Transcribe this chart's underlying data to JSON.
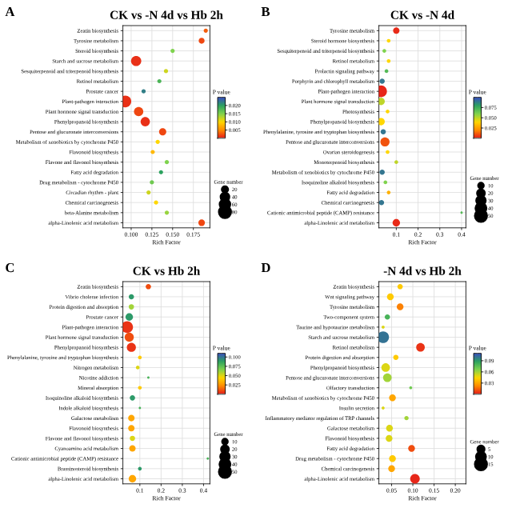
{
  "chart_data": [
    {
      "type": "bubble",
      "orientation": "horizontal",
      "title": "CK vs -N 4d vs Hb 2h",
      "xlabel": "Rich Factor",
      "clabel": "P value",
      "legend_title": "Gene number",
      "annotations": [
        "A"
      ],
      "categories": [
        "Zeatin biosynthesis",
        "Tyrosine metabolism",
        "Steroid biosynthesis",
        "Starch and sucrose metabolism",
        "Sesquiterpenoid and triterpenoid biosynthesis",
        "Retinol metabolism",
        "Prostate cancer",
        "Plant-pathogen interaction",
        "Plant hormone signal transduction",
        "Phenylpropanoid biosynthesis",
        "Pentose and glucuronate interconversions",
        "Metabolism of xenobiotics by cytochrome P450",
        "Flavonoid biosynthesis",
        "Flavone and flavonol biosynthesis",
        "Fatty acid degradation",
        "Drug metabolism - cytochrome P450",
        "Circadian rhythm - plant",
        "Chemical carcinogenesis",
        "beta-Alanine metabolism",
        "alpha-Linolenic acid metabolism"
      ],
      "values": [
        0.19,
        0.185,
        0.15,
        0.106,
        0.142,
        0.134,
        0.115,
        0.093,
        0.109,
        0.117,
        0.138,
        0.132,
        0.126,
        0.143,
        0.136,
        0.125,
        0.121,
        0.13,
        0.143,
        0.185
      ],
      "sizes": [
        10,
        20,
        10,
        60,
        10,
        10,
        10,
        80,
        50,
        50,
        30,
        10,
        10,
        10,
        10,
        10,
        10,
        10,
        10,
        25
      ],
      "cvalues": [
        0.003,
        0.002,
        0.015,
        0.001,
        0.012,
        0.018,
        0.022,
        0.001,
        0.002,
        0.001,
        0.002,
        0.01,
        0.008,
        0.015,
        0.02,
        0.016,
        0.012,
        0.01,
        0.014,
        0.002
      ],
      "xlim": [
        0.09,
        0.195
      ],
      "xticks": [
        {
          "value": 0.1,
          "label": "0.100"
        },
        {
          "value": 0.125,
          "label": "0.125"
        },
        {
          "value": 0.15,
          "label": "0.150"
        },
        {
          "value": 0.175,
          "label": "0.175"
        }
      ],
      "clim": [
        0,
        0.025
      ],
      "cticks": [
        {
          "value": 0.005,
          "label": "0.005"
        },
        {
          "value": 0.01,
          "label": "0.010"
        },
        {
          "value": 0.015,
          "label": "0.015"
        },
        {
          "value": 0.02,
          "label": "0.020"
        }
      ],
      "size_legend": [
        20,
        40,
        60,
        80
      ],
      "grid": true
    },
    {
      "type": "bubble",
      "orientation": "horizontal",
      "title": "CK vs -N 4d",
      "xlabel": "Rich Factor",
      "clabel": "P value",
      "legend_title": "Gene number",
      "annotations": [
        "B"
      ],
      "categories": [
        "Tyrosine metabolism",
        "Steroid hormone biosynthesis",
        "Sesquiterpenoid and triterpenoid biosynthesis",
        "Retinol metabolism",
        "Prolactin signaling pathway",
        "Porphyrin and chlorophyll metabolism",
        "Plant-pathogen interaction",
        "Plant hormone signal transduction",
        "Photosynthesis",
        "Phenylpropanoid biosynthesis",
        "Phenylalanine, tyrosine and tryptophan biosynthesis",
        "Pentose and glucuronate interconversions",
        "Ovarian steroidogenesis",
        "Monoterpenoid biosynthesis",
        "Metabolism of xenobiotics by cytochrome P450",
        "Isoquinoline alkaloid biosynthesis",
        "Fatty acid degradation",
        "Chemical carcinogenesis",
        "Cationic antimicrobial peptide (CAMP) resistance",
        "alpha-Linolenic acid metabolism"
      ],
      "values": [
        0.1,
        0.065,
        0.045,
        0.065,
        0.055,
        0.035,
        0.03,
        0.03,
        0.06,
        0.03,
        0.04,
        0.048,
        0.06,
        0.1,
        0.035,
        0.05,
        0.065,
        0.032,
        0.4,
        0.1
      ],
      "sizes": [
        15,
        5,
        5,
        5,
        5,
        10,
        50,
        20,
        5,
        20,
        10,
        30,
        5,
        5,
        10,
        5,
        5,
        10,
        2,
        20
      ],
      "cvalues": [
        0.003,
        0.04,
        0.06,
        0.04,
        0.07,
        0.09,
        0.002,
        0.05,
        0.04,
        0.04,
        0.09,
        0.01,
        0.04,
        0.05,
        0.09,
        0.06,
        0.03,
        0.09,
        0.07,
        0.003
      ],
      "xlim": [
        0.02,
        0.42
      ],
      "xticks": [
        0.1,
        0.2,
        0.3,
        0.4
      ],
      "clim": [
        0,
        0.1
      ],
      "cticks": [
        {
          "value": 0.025,
          "label": "0.025"
        },
        {
          "value": 0.05,
          "label": "0.050"
        },
        {
          "value": 0.075,
          "label": "0.075"
        }
      ],
      "size_legend": [
        10,
        20,
        30,
        40,
        50
      ],
      "grid": true
    },
    {
      "type": "bubble",
      "orientation": "horizontal",
      "title": "CK vs Hb 2h",
      "xlabel": "Rich Factor",
      "clabel": "P value",
      "legend_title": "Gene number",
      "annotations": [
        "C"
      ],
      "categories": [
        "Zeatin biosynthesis",
        "Vibrio cholerae infection",
        "Protein digestion and absorption",
        "Prostate cancer",
        "Plant-pathogen interaction",
        "Plant hormone signal transduction",
        "Phenylpropanoid biosynthesis",
        "Phenylalanine, tyrosine and tryptophan biosynthesis",
        "Nitrogen metabolism",
        "Nicotine addiction",
        "Mineral absorption",
        "Isoquinoline alkaloid biosynthesis",
        "Indole alkaloid biosynthesis",
        "Galactose metabolism",
        "Flavonoid biosynthesis",
        "Flavone and flavonol biosynthesis",
        "Cyanoamino acid metabolism",
        "Cationic antimicrobial peptide (CAMP) resistance",
        "Brassinosteroid biosynthesis",
        "alpha-Linolenic acid metabolism"
      ],
      "values": [
        0.14,
        0.06,
        0.06,
        0.05,
        0.04,
        0.05,
        0.06,
        0.1,
        0.09,
        0.14,
        0.1,
        0.065,
        0.1,
        0.06,
        0.06,
        0.065,
        0.065,
        0.42,
        0.1,
        0.065
      ],
      "sizes": [
        10,
        10,
        10,
        20,
        50,
        30,
        30,
        5,
        5,
        2,
        5,
        10,
        2,
        15,
        15,
        10,
        15,
        2,
        5,
        20
      ],
      "cvalues": [
        0.01,
        0.09,
        0.06,
        0.09,
        0.005,
        0.01,
        0.005,
        0.04,
        0.05,
        0.08,
        0.04,
        0.09,
        0.08,
        0.03,
        0.03,
        0.05,
        0.03,
        0.08,
        0.09,
        0.03
      ],
      "xlim": [
        0.02,
        0.43
      ],
      "xticks": [
        0.1,
        0.2,
        0.3,
        0.4
      ],
      "clim": [
        0,
        0.11
      ],
      "cticks": [
        {
          "value": 0.025,
          "label": "0.025"
        },
        {
          "value": 0.05,
          "label": "0.050"
        },
        {
          "value": 0.075,
          "label": "0.075"
        },
        {
          "value": 0.1,
          "label": "0.100"
        }
      ],
      "size_legend": [
        10,
        20,
        30,
        40,
        50
      ],
      "grid": true
    },
    {
      "type": "bubble",
      "orientation": "horizontal",
      "title": "-N 4d vs Hb 2h",
      "xlabel": "Rich Factor",
      "clabel": "P value",
      "legend_title": "Gene number",
      "annotations": [
        "D"
      ],
      "categories": [
        "Zeatin biosynthesis",
        "Wnt signaling pathway",
        "Tyrosine metabolism",
        "Two-component system",
        "Taurine and hypotaurine metabolism",
        "Starch and sucrose metabolism",
        "Retinol metabolism",
        "Protein digestion and absorption",
        "Phenylpropanoid biosynthesis",
        "Pentose and glucuronate interconversions",
        "Olfactory transduction",
        "Metabolism of xenobiotics by cytochrome P450",
        "Insulin secretion",
        "Inflammatory mediator regulation of TRP channels",
        "Galactose metabolism",
        "Flavonoid biosynthesis",
        "Fatty acid degradation",
        "Drug metabolism - cytochrome P450",
        "Chemical carcinogenesis",
        "alpha-Linolenic acid metabolism"
      ],
      "values": [
        0.07,
        0.047,
        0.07,
        0.04,
        0.03,
        0.03,
        0.118,
        0.06,
        0.036,
        0.04,
        0.095,
        0.052,
        0.03,
        0.085,
        0.045,
        0.044,
        0.097,
        0.052,
        0.05,
        0.105
      ],
      "sizes": [
        3,
        5,
        5,
        3,
        1,
        15,
        8,
        3,
        8,
        8,
        1,
        5,
        1,
        2,
        5,
        5,
        5,
        5,
        5,
        10
      ],
      "cvalues": [
        0.04,
        0.04,
        0.02,
        0.08,
        0.05,
        0.1,
        0.005,
        0.04,
        0.05,
        0.06,
        0.07,
        0.03,
        0.05,
        0.06,
        0.05,
        0.05,
        0.01,
        0.04,
        0.03,
        0.003
      ],
      "xlim": [
        0.02,
        0.225
      ],
      "xticks": [
        {
          "value": 0.05,
          "label": "0.05"
        },
        {
          "value": 0.1,
          "label": "0.10"
        },
        {
          "value": 0.15,
          "label": "0.15"
        },
        {
          "value": 0.2,
          "label": "0.20"
        }
      ],
      "clim": [
        0,
        0.11
      ],
      "cticks": [
        {
          "value": 0.03,
          "label": "0.03"
        },
        {
          "value": 0.06,
          "label": "0.06"
        },
        {
          "value": 0.09,
          "label": "0.09"
        }
      ],
      "size_legend": [
        5,
        10,
        15
      ],
      "grid": true
    }
  ]
}
